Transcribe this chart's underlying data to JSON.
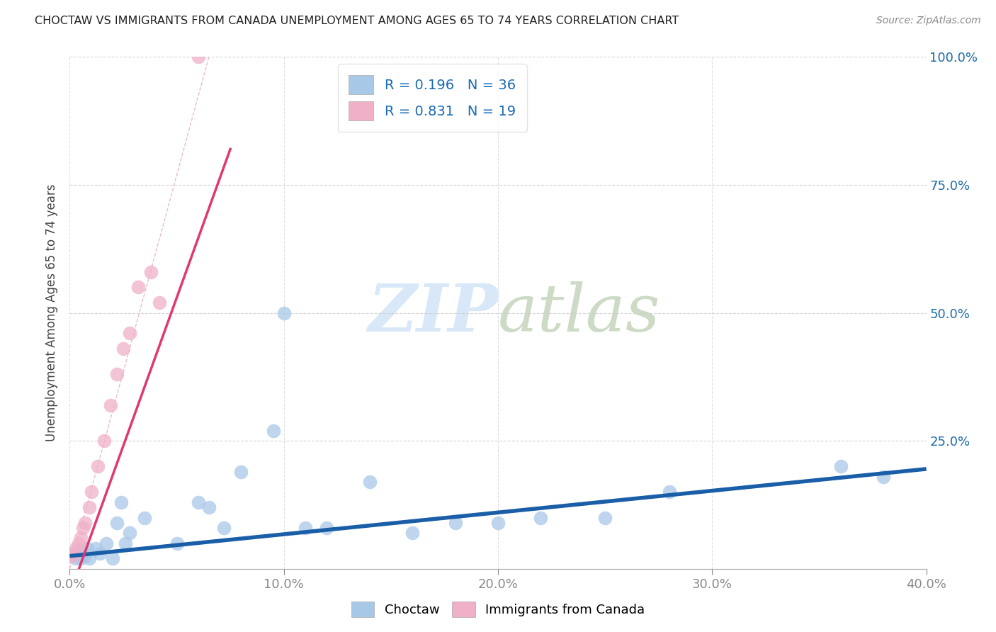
{
  "title": "CHOCTAW VS IMMIGRANTS FROM CANADA UNEMPLOYMENT AMONG AGES 65 TO 74 YEARS CORRELATION CHART",
  "source": "Source: ZipAtlas.com",
  "ylabel": "Unemployment Among Ages 65 to 74 years",
  "xlim": [
    0.0,
    0.4
  ],
  "ylim": [
    0.0,
    1.0
  ],
  "xtick_labels": [
    "0.0%",
    "10.0%",
    "20.0%",
    "30.0%",
    "40.0%"
  ],
  "xtick_vals": [
    0.0,
    0.1,
    0.2,
    0.3,
    0.4
  ],
  "ytick_labels": [
    "",
    "25.0%",
    "50.0%",
    "75.0%",
    "100.0%"
  ],
  "ytick_vals": [
    0.0,
    0.25,
    0.5,
    0.75,
    1.0
  ],
  "choctaw_R": 0.196,
  "choctaw_N": 36,
  "canada_R": 0.831,
  "canada_N": 19,
  "choctaw_color": "#a8c8e8",
  "canada_color": "#f0b0c8",
  "choctaw_line_color": "#1a5ea8",
  "canada_line_color": "#e03870",
  "ref_line_color": "#e8c0cc",
  "legend_text_color": "#1a6ab5",
  "watermark_color": "#d8e8f8",
  "background_color": "#ffffff",
  "choctaw_x": [
    0.001,
    0.002,
    0.003,
    0.004,
    0.005,
    0.006,
    0.007,
    0.008,
    0.009,
    0.012,
    0.014,
    0.017,
    0.02,
    0.022,
    0.024,
    0.026,
    0.028,
    0.035,
    0.05,
    0.06,
    0.065,
    0.072,
    0.08,
    0.095,
    0.1,
    0.11,
    0.12,
    0.14,
    0.16,
    0.18,
    0.2,
    0.22,
    0.25,
    0.28,
    0.36,
    0.38
  ],
  "choctaw_y": [
    0.025,
    0.03,
    0.02,
    0.035,
    0.02,
    0.03,
    0.025,
    0.04,
    0.02,
    0.04,
    0.03,
    0.05,
    0.02,
    0.09,
    0.13,
    0.05,
    0.07,
    0.1,
    0.05,
    0.13,
    0.12,
    0.08,
    0.19,
    0.27,
    0.5,
    0.08,
    0.08,
    0.17,
    0.07,
    0.09,
    0.09,
    0.1,
    0.1,
    0.15,
    0.2,
    0.18
  ],
  "canada_x": [
    0.001,
    0.002,
    0.003,
    0.004,
    0.005,
    0.006,
    0.007,
    0.009,
    0.01,
    0.013,
    0.016,
    0.019,
    0.022,
    0.025,
    0.028,
    0.032,
    0.038,
    0.042,
    0.06
  ],
  "canada_y": [
    0.025,
    0.03,
    0.04,
    0.05,
    0.06,
    0.08,
    0.09,
    0.12,
    0.15,
    0.2,
    0.25,
    0.32,
    0.38,
    0.43,
    0.46,
    0.55,
    0.58,
    0.52,
    1.0
  ],
  "choctaw_trend": [
    0.0,
    0.4,
    0.04,
    0.18
  ],
  "canada_trend_x": [
    0.0,
    0.075
  ],
  "canada_trend_y": [
    -0.01,
    0.8
  ]
}
